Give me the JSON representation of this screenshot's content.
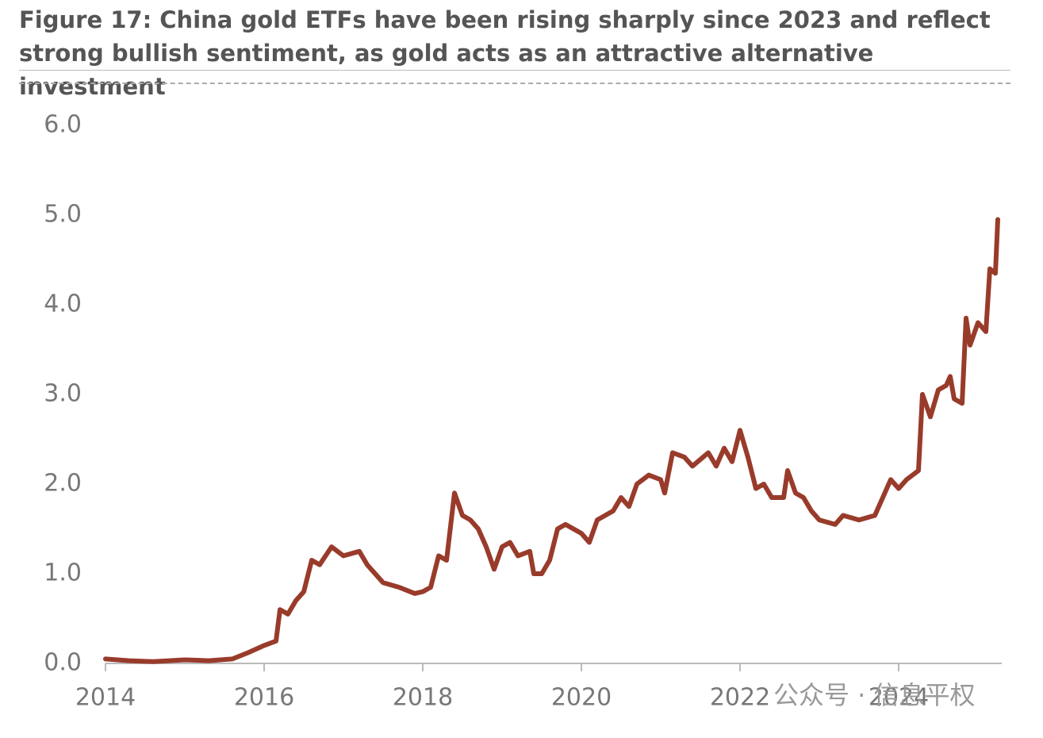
{
  "chart_data": {
    "type": "line",
    "title": "Figure 17: China gold ETFs have been rising sharply since 2023 and reflect strong bullish sentiment, as gold acts as an attractive alternative investment",
    "watermark": "公众号 · 信息平权",
    "color": "#993b2b",
    "x": [
      2014.0,
      2014.3,
      2014.6,
      2015.0,
      2015.3,
      2015.6,
      2015.8,
      2016.0,
      2016.15,
      2016.2,
      2016.3,
      2016.4,
      2016.5,
      2016.6,
      2016.7,
      2016.85,
      2017.0,
      2017.2,
      2017.3,
      2017.5,
      2017.7,
      2017.9,
      2018.0,
      2018.1,
      2018.2,
      2018.3,
      2018.4,
      2018.5,
      2018.6,
      2018.7,
      2018.8,
      2018.9,
      2019.0,
      2019.1,
      2019.2,
      2019.35,
      2019.4,
      2019.5,
      2019.6,
      2019.7,
      2019.8,
      2020.0,
      2020.1,
      2020.2,
      2020.4,
      2020.5,
      2020.6,
      2020.7,
      2020.85,
      2021.0,
      2021.05,
      2021.15,
      2021.3,
      2021.4,
      2021.6,
      2021.7,
      2021.8,
      2021.9,
      2022.0,
      2022.1,
      2022.2,
      2022.3,
      2022.4,
      2022.55,
      2022.6,
      2022.7,
      2022.8,
      2022.9,
      2023.0,
      2023.2,
      2023.3,
      2023.5,
      2023.7,
      2023.8,
      2023.9,
      2024.0,
      2024.1,
      2024.25,
      2024.3,
      2024.4,
      2024.5,
      2024.6,
      2024.65,
      2024.7,
      2024.8,
      2024.85,
      2024.9,
      2025.0,
      2025.1,
      2025.15,
      2025.22,
      2025.25
    ],
    "values": [
      0.05,
      0.03,
      0.02,
      0.04,
      0.03,
      0.05,
      0.12,
      0.2,
      0.25,
      0.6,
      0.55,
      0.7,
      0.8,
      1.15,
      1.1,
      1.3,
      1.2,
      1.25,
      1.1,
      0.9,
      0.85,
      0.78,
      0.8,
      0.85,
      1.2,
      1.15,
      1.9,
      1.65,
      1.6,
      1.5,
      1.3,
      1.05,
      1.3,
      1.35,
      1.2,
      1.25,
      1.0,
      1.0,
      1.15,
      1.5,
      1.55,
      1.45,
      1.35,
      1.6,
      1.7,
      1.85,
      1.75,
      2.0,
      2.1,
      2.05,
      1.9,
      2.35,
      2.3,
      2.2,
      2.35,
      2.2,
      2.4,
      2.25,
      2.6,
      2.3,
      1.95,
      2.0,
      1.85,
      1.85,
      2.15,
      1.9,
      1.85,
      1.7,
      1.6,
      1.55,
      1.65,
      1.6,
      1.65,
      1.85,
      2.05,
      1.95,
      2.05,
      2.15,
      3.0,
      2.75,
      3.05,
      3.1,
      3.2,
      2.95,
      2.9,
      3.85,
      3.55,
      3.8,
      3.7,
      4.4,
      4.35,
      4.95
    ],
    "xlim": [
      2014,
      2025.3
    ],
    "ylim": [
      0,
      6.0
    ],
    "xticks": [
      2014,
      2016,
      2018,
      2020,
      2022,
      2024
    ],
    "yticks": [
      {
        "value": 0,
        "label": "0.0"
      },
      {
        "value": 1,
        "label": "1.0"
      },
      {
        "value": 2,
        "label": "2.0"
      },
      {
        "value": 3,
        "label": "3.0"
      },
      {
        "value": 4,
        "label": "4.0"
      },
      {
        "value": 5,
        "label": "5.0"
      },
      {
        "value": 6,
        "label": "6.0"
      }
    ]
  }
}
